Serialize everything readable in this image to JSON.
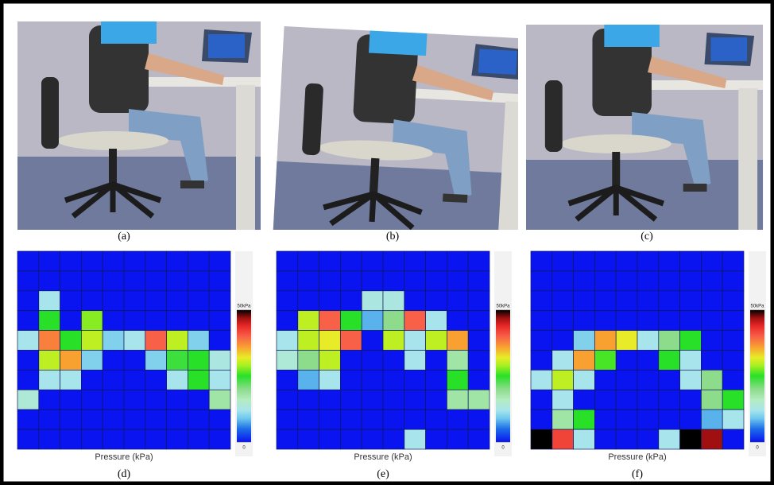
{
  "panels": [
    {
      "caption": "(a)"
    },
    {
      "caption": "(b)"
    },
    {
      "caption": "(c)"
    }
  ],
  "heatmaps": [
    {
      "caption": "(d)",
      "xlabel": "Pressure (kPa)",
      "colorbar_ticks": [
        {
          "value": 50,
          "label": "50kPa"
        },
        0
      ],
      "values": [
        [
          0,
          0,
          0,
          0,
          0,
          0,
          0,
          0,
          0,
          0
        ],
        [
          0,
          0,
          0,
          0,
          0,
          0,
          0,
          0,
          0,
          0
        ],
        [
          0,
          12,
          0,
          0,
          0,
          0,
          0,
          0,
          0,
          0
        ],
        [
          0,
          25,
          0,
          28,
          0,
          0,
          0,
          0,
          0,
          0
        ],
        [
          12,
          38,
          25,
          30,
          10,
          12,
          40,
          30,
          10,
          0
        ],
        [
          0,
          30,
          36,
          10,
          0,
          0,
          10,
          24,
          25,
          13
        ],
        [
          0,
          12,
          12,
          0,
          0,
          0,
          0,
          12,
          25,
          12
        ],
        [
          14,
          0,
          0,
          0,
          0,
          0,
          0,
          0,
          0,
          18
        ],
        [
          0,
          0,
          0,
          0,
          0,
          0,
          0,
          0,
          0,
          0
        ],
        [
          0,
          0,
          0,
          0,
          0,
          0,
          0,
          0,
          0,
          0
        ]
      ]
    },
    {
      "caption": "(e)",
      "xlabel": "Pressure (kPa)",
      "colorbar_ticks": [
        {
          "value": 50,
          "label": "50kPa"
        },
        0
      ],
      "values": [
        [
          0,
          0,
          0,
          0,
          0,
          0,
          0,
          0,
          0,
          0
        ],
        [
          0,
          0,
          0,
          0,
          0,
          0,
          0,
          0,
          0,
          0
        ],
        [
          0,
          0,
          0,
          0,
          13,
          13,
          0,
          0,
          0,
          0
        ],
        [
          0,
          30,
          40,
          25,
          8,
          20,
          40,
          12,
          0,
          0
        ],
        [
          12,
          30,
          32,
          40,
          0,
          30,
          12,
          30,
          36,
          0
        ],
        [
          14,
          20,
          30,
          0,
          0,
          0,
          12,
          0,
          18,
          0
        ],
        [
          0,
          8,
          12,
          0,
          0,
          0,
          0,
          0,
          25,
          0
        ],
        [
          0,
          0,
          0,
          0,
          0,
          0,
          0,
          0,
          18,
          18
        ],
        [
          0,
          0,
          0,
          0,
          0,
          0,
          0,
          0,
          0,
          0
        ],
        [
          0,
          0,
          0,
          0,
          0,
          0,
          12,
          0,
          0,
          0
        ]
      ]
    },
    {
      "caption": "(f)",
      "xlabel": "Pressure (kPa)",
      "colorbar_ticks": [
        {
          "value": 50,
          "label": "50kPa"
        },
        0
      ],
      "values": [
        [
          0,
          0,
          0,
          0,
          0,
          0,
          0,
          0,
          0,
          0
        ],
        [
          0,
          0,
          0,
          0,
          0,
          0,
          0,
          0,
          0,
          0
        ],
        [
          0,
          0,
          0,
          0,
          0,
          0,
          0,
          0,
          0,
          0
        ],
        [
          0,
          0,
          0,
          0,
          0,
          0,
          0,
          0,
          0,
          0
        ],
        [
          0,
          0,
          10,
          36,
          32,
          12,
          20,
          25,
          0,
          0
        ],
        [
          0,
          12,
          36,
          26,
          0,
          0,
          25,
          12,
          0,
          0
        ],
        [
          12,
          30,
          12,
          0,
          0,
          0,
          0,
          12,
          20,
          0
        ],
        [
          0,
          12,
          0,
          0,
          0,
          0,
          0,
          0,
          20,
          25
        ],
        [
          0,
          18,
          25,
          0,
          0,
          0,
          0,
          0,
          8,
          12
        ],
        [
          50,
          42,
          12,
          0,
          0,
          0,
          12,
          50,
          47,
          0
        ]
      ]
    }
  ]
}
